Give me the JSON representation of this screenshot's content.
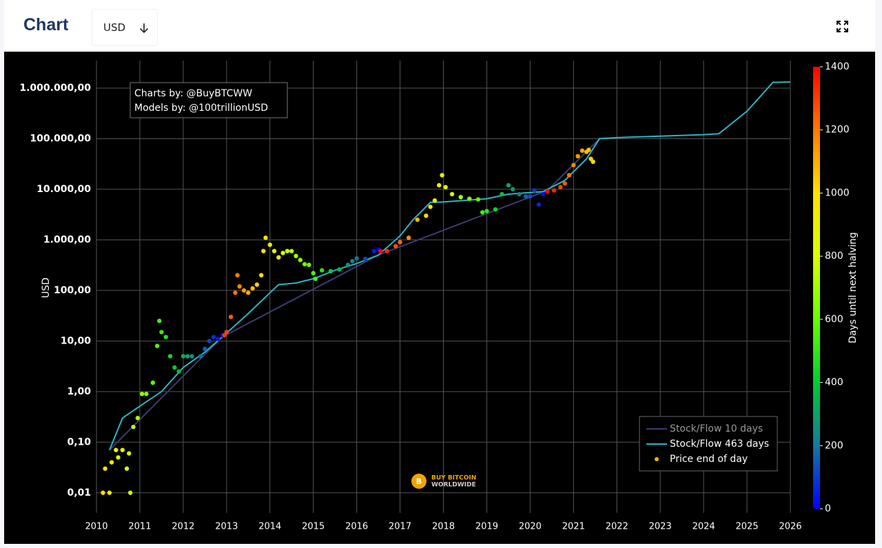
{
  "header": {
    "title": "Chart",
    "currency": "USD"
  },
  "chart_data": {
    "type": "mixed",
    "log": true,
    "grid": true,
    "legend": "bottom-right",
    "ylabel": "USD",
    "annotations": [
      "Charts by: @BuyBTCWW",
      "Models by: @100trillionUSD"
    ],
    "watermark": [
      "BUY BITCOIN",
      "WORLDWIDE"
    ],
    "xlim": [
      2010,
      2026
    ],
    "xticks": [
      2010,
      2011,
      2012,
      2013,
      2014,
      2015,
      2016,
      2017,
      2018,
      2019,
      2020,
      2021,
      2022,
      2023,
      2024,
      2025,
      2026
    ],
    "ylim": [
      0.004,
      3500000
    ],
    "yticks": [
      {
        "value": 0.01,
        "label": "0,01"
      },
      {
        "value": 0.1,
        "label": "0,10"
      },
      {
        "value": 1,
        "label": "1,00"
      },
      {
        "value": 10,
        "label": "10,00"
      },
      {
        "value": 100,
        "label": "100,00"
      },
      {
        "value": 1000,
        "label": "1.000,00"
      },
      {
        "value": 10000,
        "label": "10.000,00"
      },
      {
        "value": 100000,
        "label": "100.000,00"
      },
      {
        "value": 1000000,
        "label": "1.000.000,00"
      }
    ],
    "colorbar": {
      "title": "Days until next halving",
      "lim": [
        0,
        1400
      ],
      "ticks": [
        0,
        200,
        400,
        600,
        800,
        1000,
        1200,
        1400
      ],
      "colorscale": [
        "#0000ff",
        "#16789c",
        "#00cc33",
        "#66ff00",
        "#d8ff00",
        "#ffe000",
        "#ff7a00",
        "#ff0000"
      ]
    },
    "series": [
      {
        "name": "Stock/Flow 10 days",
        "mode": "line",
        "color": "#3b3d74",
        "x": [
          2010.3,
          2012.9,
          2016.5,
          2020.4,
          2021.6
        ],
        "values": [
          0.07,
          12,
          500,
          9500,
          100000
        ]
      },
      {
        "name": "Stock/Flow 463 days",
        "mode": "line",
        "color": "#2cb5c6",
        "x": [
          2010.3,
          2010.6,
          2010.9,
          2011.5,
          2012.0,
          2012.5,
          2012.9,
          2013.5,
          2014.0,
          2014.2,
          2014.6,
          2015.0,
          2015.5,
          2016.0,
          2016.5,
          2017.0,
          2017.3,
          2017.7,
          2018.0,
          2019.0,
          2019.5,
          2020.0,
          2020.3,
          2020.8,
          2021.3,
          2021.6,
          2022.0,
          2023.0,
          2024.0,
          2024.35,
          2025.0,
          2025.6,
          2026.0
        ],
        "values": [
          0.07,
          0.3,
          0.45,
          1,
          3,
          6,
          12,
          35,
          90,
          130,
          140,
          170,
          250,
          340,
          500,
          1200,
          2500,
          5500,
          5600,
          6500,
          8000,
          8600,
          9000,
          15000,
          40000,
          100000,
          105000,
          112000,
          120000,
          125000,
          350000,
          1300000,
          1320000
        ]
      },
      {
        "name": "Price end of day",
        "mode": "markers",
        "color": "#f5b400",
        "x": [
          2010.15,
          2010.2,
          2010.3,
          2010.35,
          2010.45,
          2010.5,
          2010.6,
          2010.7,
          2010.75,
          2010.78,
          2010.85,
          2010.95,
          2011.05,
          2011.15,
          2011.3,
          2011.4,
          2011.45,
          2011.5,
          2011.6,
          2011.7,
          2011.8,
          2011.9,
          2012.0,
          2012.1,
          2012.2,
          2012.4,
          2012.5,
          2012.6,
          2012.7,
          2012.8,
          2012.9,
          2012.95,
          2013.0,
          2013.1,
          2013.2,
          2013.25,
          2013.3,
          2013.4,
          2013.5,
          2013.6,
          2013.7,
          2013.8,
          2013.85,
          2013.9,
          2014.0,
          2014.1,
          2014.2,
          2014.3,
          2014.4,
          2014.5,
          2014.6,
          2014.7,
          2014.8,
          2014.9,
          2015.0,
          2015.05,
          2015.2,
          2015.4,
          2015.6,
          2015.8,
          2015.9,
          2016.0,
          2016.2,
          2016.4,
          2016.5,
          2016.55,
          2016.7,
          2016.9,
          2017.0,
          2017.2,
          2017.4,
          2017.6,
          2017.7,
          2017.8,
          2017.9,
          2017.97,
          2018.05,
          2018.2,
          2018.4,
          2018.6,
          2018.8,
          2018.9,
          2019.0,
          2019.2,
          2019.35,
          2019.5,
          2019.6,
          2019.75,
          2019.9,
          2020.0,
          2020.1,
          2020.2,
          2020.3,
          2020.4,
          2020.55,
          2020.7,
          2020.8,
          2020.9,
          2021.0,
          2021.1,
          2021.2,
          2021.3,
          2021.35,
          2021.4,
          2021.45
        ],
        "values": [
          0.01,
          0.03,
          0.01,
          0.04,
          0.07,
          0.05,
          0.07,
          0.03,
          0.06,
          0.01,
          0.2,
          0.3,
          0.9,
          0.9,
          1.5,
          8,
          25,
          15,
          12,
          5,
          3,
          2.5,
          5,
          5,
          5,
          5,
          7,
          10,
          12,
          11,
          13,
          13,
          15,
          30,
          90,
          200,
          120,
          100,
          90,
          110,
          130,
          200,
          600,
          1100,
          800,
          600,
          450,
          550,
          600,
          600,
          480,
          400,
          330,
          320,
          220,
          170,
          250,
          240,
          260,
          320,
          380,
          430,
          420,
          600,
          650,
          600,
          600,
          750,
          900,
          1100,
          2500,
          3000,
          4500,
          6000,
          12000,
          19000,
          11000,
          8000,
          7000,
          6500,
          6300,
          3500,
          3700,
          4000,
          8000,
          12000,
          10000,
          8000,
          7200,
          7200,
          9500,
          5000,
          8000,
          9000,
          9500,
          11000,
          13000,
          19000,
          30000,
          45000,
          58000,
          55000,
          60000,
          40000,
          35000
        ],
        "days": [
          1007,
          989,
          953,
          934,
          898,
          880,
          843,
          807,
          788,
          777,
          752,
          715,
          679,
          642,
          588,
          551,
          533,
          515,
          478,
          442,
          405,
          369,
          332,
          296,
          259,
          186,
          150,
          113,
          77,
          40,
          4,
          1303,
          1285,
          1241,
          1212,
          1194,
          1175,
          1139,
          1102,
          1066,
          1029,
          993,
          975,
          956,
          920,
          883,
          847,
          810,
          774,
          737,
          701,
          664,
          628,
          591,
          555,
          537,
          482,
          409,
          336,
          263,
          226,
          190,
          117,
          44,
          7,
          1394,
          1336,
          1263,
          1226,
          1153,
          1080,
          1007,
          971,
          934,
          898,
          872,
          843,
          788,
          715,
          642,
          569,
          533,
          496,
          423,
          369,
          314,
          277,
          223,
          168,
          131,
          95,
          58,
          22,
          1390,
          1340,
          1285,
          1249,
          1212,
          1175,
          1139,
          1102,
          1066,
          1048,
          1030,
          1011
        ]
      }
    ]
  }
}
